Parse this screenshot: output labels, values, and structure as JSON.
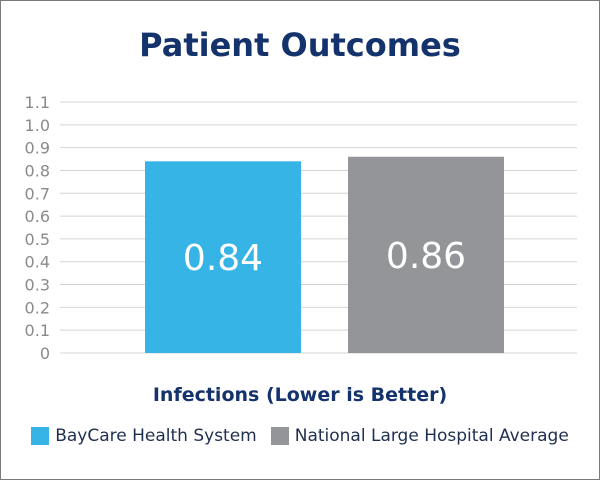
{
  "chart_data": {
    "type": "bar",
    "title": "Patient Outcomes",
    "xlabel": "Infections (Lower is Better)",
    "ylabel": "",
    "ylim": [
      0,
      1.1
    ],
    "yticks": [
      "0",
      "0.1",
      "0.2",
      "0.3",
      "0.4",
      "0.5",
      "0.6",
      "0.7",
      "0.8",
      "0.9",
      "1.0",
      "1.1"
    ],
    "grid": true,
    "legend_position": "bottom",
    "series": [
      {
        "name": "BayCare Health System",
        "values": [
          0.84
        ],
        "label": "0.84",
        "color": "#35b4e5"
      },
      {
        "name": "National Large Hospital Average",
        "values": [
          0.86
        ],
        "label": "0.86",
        "color": "#939598"
      }
    ]
  }
}
